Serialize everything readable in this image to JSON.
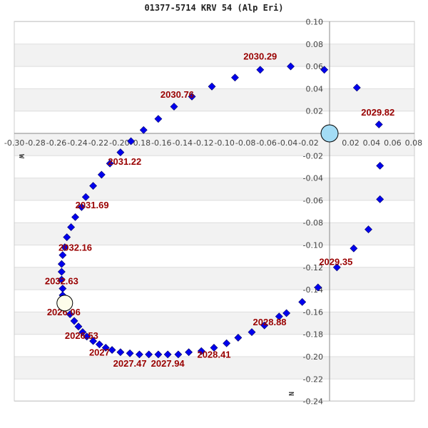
{
  "chart_data": {
    "type": "scatter",
    "title": "01377-5714 KRV  54 (Alp Eri)",
    "xlabel": "W",
    "ylabel": "N",
    "xlim": [
      -0.3,
      0.08
    ],
    "ylim": [
      -0.24,
      0.1
    ],
    "grid": true,
    "x_ticks": [
      "-0.30",
      "-0.28",
      "-0.26",
      "-0.24",
      "-0.22",
      "-0.20",
      "-0.18",
      "-0.16",
      "-0.14",
      "-0.12",
      "-0.10",
      "-0.08",
      "-0.06",
      "-0.04",
      "-0.02",
      "0.02",
      "0.04",
      "0.06",
      "0.08"
    ],
    "x_tick_values": [
      -0.3,
      -0.28,
      -0.26,
      -0.24,
      -0.22,
      -0.2,
      -0.18,
      -0.16,
      -0.14,
      -0.12,
      -0.1,
      -0.08,
      -0.06,
      -0.04,
      -0.02,
      0.02,
      0.04,
      0.06,
      0.08
    ],
    "y_ticks": [
      "0.10",
      "0.08",
      "0.06",
      "0.04",
      "0.02",
      "-0.02",
      "-0.04",
      "-0.06",
      "-0.08",
      "-0.10",
      "-0.12",
      "-0.14",
      "-0.16",
      "-0.18",
      "-0.20",
      "-0.22",
      "-0.24"
    ],
    "y_tick_values": [
      0.1,
      0.08,
      0.06,
      0.04,
      0.02,
      -0.02,
      -0.04,
      -0.06,
      -0.08,
      -0.1,
      -0.12,
      -0.14,
      -0.16,
      -0.18,
      -0.2,
      -0.22,
      -0.24
    ],
    "primary": {
      "name": "primary star",
      "x": 0.0,
      "y": 0.0,
      "color": "#a3dcf5"
    },
    "companion": {
      "name": "companion at current epoch",
      "x": -0.252,
      "y": -0.152,
      "color": "#fdfdea"
    },
    "series": [
      {
        "name": "orbit positions",
        "color": "#0000ee",
        "points": [
          [
            -0.247,
            -0.162
          ],
          [
            -0.243,
            -0.168
          ],
          [
            -0.239,
            -0.173
          ],
          [
            -0.235,
            -0.178
          ],
          [
            -0.231,
            -0.182
          ],
          [
            -0.225,
            -0.186
          ],
          [
            -0.219,
            -0.189
          ],
          [
            -0.213,
            -0.192
          ],
          [
            -0.207,
            -0.194
          ],
          [
            -0.199,
            -0.196
          ],
          [
            -0.19,
            -0.197
          ],
          [
            -0.181,
            -0.198
          ],
          [
            -0.172,
            -0.198
          ],
          [
            -0.163,
            -0.198
          ],
          [
            -0.154,
            -0.198
          ],
          [
            -0.144,
            -0.198
          ],
          [
            -0.134,
            -0.196
          ],
          [
            -0.122,
            -0.195
          ],
          [
            -0.11,
            -0.192
          ],
          [
            -0.098,
            -0.188
          ],
          [
            -0.087,
            -0.183
          ],
          [
            -0.074,
            -0.178
          ],
          [
            -0.062,
            -0.172
          ],
          [
            -0.048,
            -0.164
          ],
          [
            -0.041,
            -0.161
          ],
          [
            -0.026,
            -0.151
          ],
          [
            -0.011,
            -0.138
          ],
          [
            0.007,
            -0.12
          ],
          [
            0.023,
            -0.103
          ],
          [
            0.037,
            -0.086
          ],
          [
            0.048,
            -0.059
          ],
          [
            0.048,
            -0.029
          ],
          [
            0.047,
            0.008
          ],
          [
            0.026,
            0.041
          ],
          [
            -0.005,
            0.057
          ],
          [
            -0.037,
            0.06
          ],
          [
            -0.066,
            0.057
          ],
          [
            -0.09,
            0.05
          ],
          [
            -0.112,
            0.042
          ],
          [
            -0.131,
            0.033
          ],
          [
            -0.148,
            0.024
          ],
          [
            -0.163,
            0.013
          ],
          [
            -0.177,
            0.003
          ],
          [
            -0.189,
            -0.007
          ],
          [
            -0.199,
            -0.017
          ],
          [
            -0.209,
            -0.027
          ],
          [
            -0.217,
            -0.037
          ],
          [
            -0.225,
            -0.047
          ],
          [
            -0.232,
            -0.057
          ],
          [
            -0.236,
            -0.066
          ],
          [
            -0.242,
            -0.075
          ],
          [
            -0.246,
            -0.084
          ],
          [
            -0.25,
            -0.093
          ],
          [
            -0.252,
            -0.102
          ],
          [
            -0.254,
            -0.109
          ],
          [
            -0.255,
            -0.117
          ],
          [
            -0.255,
            -0.124
          ],
          [
            -0.255,
            -0.131
          ],
          [
            -0.254,
            -0.139
          ],
          [
            -0.254,
            -0.145
          ]
        ]
      }
    ],
    "annotations": [
      {
        "text": "2026.06",
        "x": -0.253,
        "y": -0.163
      },
      {
        "text": "2026.53",
        "x": -0.236,
        "y": -0.184
      },
      {
        "text": "2027",
        "x": -0.219,
        "y": -0.199
      },
      {
        "text": "2027.47",
        "x": -0.19,
        "y": -0.209
      },
      {
        "text": "2027.94",
        "x": -0.154,
        "y": -0.209
      },
      {
        "text": "2028.41",
        "x": -0.11,
        "y": -0.201
      },
      {
        "text": "2028.88",
        "x": -0.057,
        "y": -0.172
      },
      {
        "text": "2029.35",
        "x": 0.006,
        "y": -0.118
      },
      {
        "text": "2029.82",
        "x": 0.046,
        "y": 0.016
      },
      {
        "text": "2030.29",
        "x": -0.066,
        "y": 0.066
      },
      {
        "text": "2030.76",
        "x": -0.145,
        "y": 0.032
      },
      {
        "text": "2031.22",
        "x": -0.195,
        "y": -0.028
      },
      {
        "text": "2031.69",
        "x": -0.226,
        "y": -0.067
      },
      {
        "text": "2032.16",
        "x": -0.242,
        "y": -0.105
      },
      {
        "text": "2032.63",
        "x": -0.255,
        "y": -0.135
      }
    ]
  }
}
